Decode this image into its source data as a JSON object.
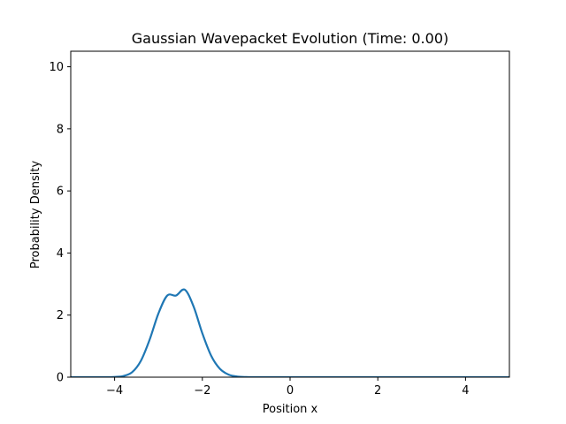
{
  "chart_data": {
    "type": "line",
    "title": "Gaussian Wavepacket Evolution (Time: 0.00)",
    "xlabel": "Position x",
    "ylabel": "Probability Density",
    "xlim": [
      -5,
      5
    ],
    "ylim": [
      0,
      10.5
    ],
    "xticks": [
      -4,
      -2,
      0,
      2,
      4
    ],
    "xtick_labels": [
      "−4",
      "−2",
      "0",
      "2",
      "4"
    ],
    "yticks": [
      0,
      2,
      4,
      6,
      8,
      10
    ],
    "ytick_labels": [
      "0",
      "2",
      "4",
      "6",
      "8",
      "10"
    ],
    "grid": false,
    "legend": "none",
    "series": [
      {
        "color": "#1f77b4",
        "x": [
          -5.0,
          -4.6,
          -4.2,
          -4.0,
          -3.8,
          -3.6,
          -3.4,
          -3.2,
          -3.0,
          -2.8,
          -2.6,
          -2.4,
          -2.2,
          -2.0,
          -1.8,
          -1.6,
          -1.4,
          -1.2,
          -1.0,
          -0.8,
          -0.4,
          0.0,
          1.0,
          2.0,
          3.0,
          4.0,
          5.0
        ],
        "values": [
          0.0,
          0.0,
          0.001,
          0.007,
          0.039,
          0.163,
          0.531,
          1.215,
          2.058,
          2.63,
          2.63,
          2.82,
          2.279,
          1.413,
          0.694,
          0.27,
          0.083,
          0.02,
          0.004,
          0.001,
          0.0,
          0.0,
          0.0,
          0.0,
          0.0,
          0.0,
          0.0
        ]
      }
    ]
  }
}
